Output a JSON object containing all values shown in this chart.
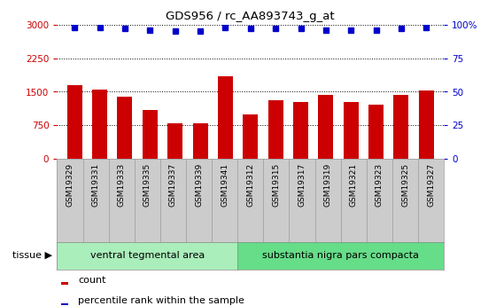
{
  "title": "GDS956 / rc_AA893743_g_at",
  "categories": [
    "GSM19329",
    "GSM19331",
    "GSM19333",
    "GSM19335",
    "GSM19337",
    "GSM19339",
    "GSM19341",
    "GSM19312",
    "GSM19315",
    "GSM19317",
    "GSM19319",
    "GSM19321",
    "GSM19323",
    "GSM19325",
    "GSM19327"
  ],
  "counts": [
    1650,
    1540,
    1390,
    1100,
    790,
    800,
    1850,
    1000,
    1310,
    1270,
    1430,
    1270,
    1220,
    1430,
    1520
  ],
  "percentiles": [
    98,
    98,
    97,
    96,
    95,
    95,
    98,
    97,
    97,
    97,
    96,
    96,
    96,
    97,
    98
  ],
  "group1_label": "ventral tegmental area",
  "group2_label": "substantia nigra pars compacta",
  "group1_count": 7,
  "group2_count": 8,
  "bar_color": "#cc0000",
  "dot_color": "#0000cc",
  "bg_color_group1": "#aaeebb",
  "bg_color_group2": "#66dd88",
  "xticklabel_bg": "#cccccc",
  "xticklabel_edge": "#999999",
  "tick_color_left": "#cc0000",
  "tick_color_right": "#0000cc",
  "ylim_left": [
    0,
    3000
  ],
  "ylim_right": [
    0,
    100
  ],
  "yticks_left": [
    0,
    750,
    1500,
    2250,
    3000
  ],
  "yticks_right": [
    0,
    25,
    50,
    75,
    100
  ],
  "tissue_label": "tissue",
  "legend_count_label": "count",
  "legend_pct_label": "percentile rank within the sample"
}
